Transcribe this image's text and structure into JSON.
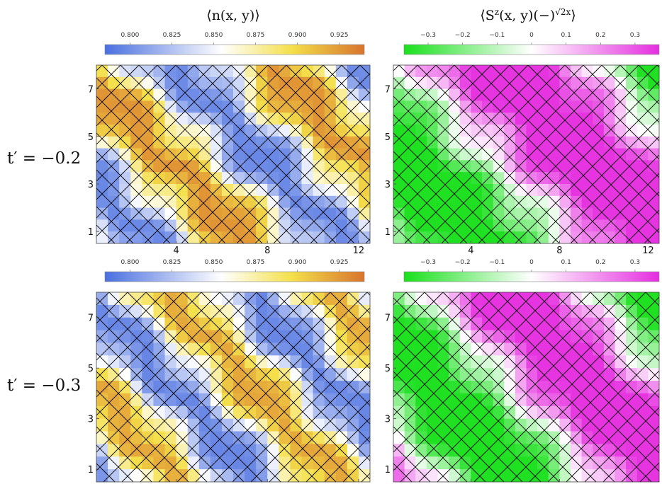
{
  "figure": {
    "row_labels": [
      "t′ = −0.2",
      "t′ = −0.3"
    ],
    "col_titles": {
      "density": "⟨n(x, y)⟩",
      "spin_main": "⟨S",
      "spin_sup1": "z",
      "spin_mid": "(x, y)(−)",
      "spin_sup2": "√2x",
      "spin_end": "⟩"
    }
  },
  "colors": {
    "density_scale": [
      "#4a6fe0",
      "#ffffff",
      "#f4e04a",
      "#d8742c"
    ],
    "spin_scale": [
      "#19e01c",
      "#ffffff",
      "#e52ee0"
    ],
    "grid_line": "#000000"
  },
  "chart_data": [
    {
      "type": "heatmap",
      "name": "density_tp_-0.2",
      "title": "⟨n(x, y)⟩",
      "row_label": "t′ = −0.2",
      "colorbar": {
        "min": 0.785,
        "max": 0.94,
        "ticks": [
          "0.800",
          "0.825",
          "0.850",
          "0.875",
          "0.900",
          "0.925"
        ],
        "tick_values": [
          0.8,
          0.825,
          0.85,
          0.875,
          0.9,
          0.925
        ],
        "placement": "top"
      },
      "x_ticks": [
        "4",
        "8",
        "12"
      ],
      "x_tick_values": [
        4,
        8,
        12
      ],
      "y_ticks": [
        "1",
        "3",
        "5",
        "7"
      ],
      "y_tick_values": [
        1,
        3,
        5,
        7
      ],
      "xlim": [
        0.5,
        12.5
      ],
      "ylim": [
        0.5,
        8.0
      ],
      "stripe": {
        "period": 6.0,
        "phase": 0.6,
        "mean": 0.862,
        "amplitude": 0.065
      },
      "lattice_diagonal_grid": true
    },
    {
      "type": "heatmap",
      "name": "spin_tp_-0.2",
      "title": "⟨S^z(x, y)(−)^(√2x)⟩",
      "row_label": "t′ = −0.2",
      "colorbar": {
        "min": -0.37,
        "max": 0.37,
        "ticks": [
          "−0.3",
          "−0.2",
          "−0.1",
          "0",
          "0.1",
          "0.2",
          "0.3"
        ],
        "tick_values": [
          -0.3,
          -0.2,
          -0.1,
          0,
          0.1,
          0.2,
          0.3
        ],
        "placement": "top"
      },
      "x_ticks": [
        "4",
        "8",
        "12"
      ],
      "x_tick_values": [
        4,
        8,
        12
      ],
      "y_ticks": [
        "1",
        "3",
        "5",
        "7"
      ],
      "y_tick_values": [
        1,
        3,
        5,
        7
      ],
      "xlim": [
        0.5,
        12.5
      ],
      "ylim": [
        0.5,
        8.0
      ],
      "stripe": {
        "period": 12.0,
        "phase": 2.6,
        "amplitude": 0.33
      },
      "lattice_diagonal_grid": true
    },
    {
      "type": "heatmap",
      "name": "density_tp_-0.3",
      "title": "⟨n(x, y)⟩",
      "row_label": "t′ = −0.3",
      "colorbar": {
        "min": 0.785,
        "max": 0.94,
        "ticks": [
          "0.800",
          "0.825",
          "0.850",
          "0.875",
          "0.900",
          "0.925"
        ],
        "tick_values": [
          0.8,
          0.825,
          0.85,
          0.875,
          0.9,
          0.925
        ],
        "placement": "top"
      },
      "x_ticks": [
        "4",
        "8",
        "12"
      ],
      "x_tick_values": [
        4,
        8,
        12
      ],
      "y_ticks": [
        "1",
        "3",
        "5",
        "7"
      ],
      "y_tick_values": [
        1,
        3,
        5,
        7
      ],
      "xlim": [
        0.5,
        12.5
      ],
      "ylim": [
        0.5,
        8.0
      ],
      "stripe": {
        "period": 5.0,
        "phase": 1.8,
        "mean": 0.858,
        "amplitude": 0.062
      },
      "lattice_diagonal_grid": true
    },
    {
      "type": "heatmap",
      "name": "spin_tp_-0.3",
      "title": "⟨S^z(x, y)(−)^(√2x)⟩",
      "row_label": "t′ = −0.3",
      "colorbar": {
        "min": -0.37,
        "max": 0.37,
        "ticks": [
          "−0.3",
          "−0.2",
          "−0.1",
          "0",
          "0.1",
          "0.2",
          "0.3"
        ],
        "tick_values": [
          -0.3,
          -0.2,
          -0.1,
          0,
          0.1,
          0.2,
          0.3
        ],
        "placement": "top"
      },
      "x_ticks": [
        "4",
        "8",
        "12"
      ],
      "x_tick_values": [
        4,
        8,
        12
      ],
      "y_ticks": [
        "1",
        "3",
        "5",
        "7"
      ],
      "y_tick_values": [
        1,
        3,
        5,
        7
      ],
      "xlim": [
        0.5,
        12.5
      ],
      "ylim": [
        0.5,
        8.0
      ],
      "stripe": {
        "period": 10.0,
        "phase": 0.4,
        "amplitude": 0.33
      },
      "lattice_diagonal_grid": true
    }
  ]
}
